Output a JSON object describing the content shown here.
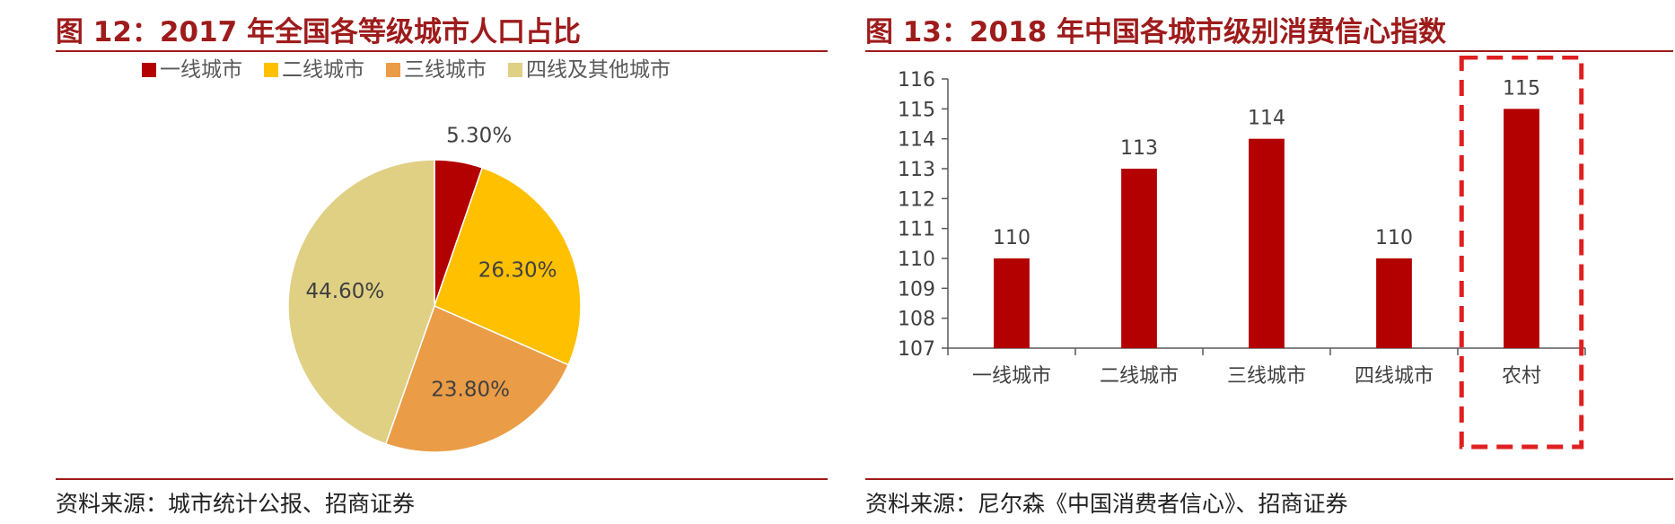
{
  "figures": {
    "left": {
      "title": "图 12：2017 年全国各等级城市人口占比",
      "source": "资料来源：城市统计公报、招商证券"
    },
    "right": {
      "title": "图 13：2018 年中国各城市级别消费信心指数",
      "source": "资料来源：尼尔森《中国消费者信心》、招商证券"
    }
  },
  "chart_data": [
    {
      "type": "pie",
      "categories": [
        "一线城市",
        "二线城市",
        "三线城市",
        "四线及其他城市"
      ],
      "values": [
        5.3,
        26.3,
        23.8,
        44.6
      ],
      "data_labels": [
        "5.30%",
        "26.30%",
        "23.80%",
        "44.60%"
      ],
      "colors": [
        "#b30000",
        "#ffc000",
        "#eb9c46",
        "#dfd084"
      ],
      "legend": "top",
      "start_angle": "12 o'clock, clockwise"
    },
    {
      "type": "bar",
      "categories": [
        "一线城市",
        "二线城市",
        "三线城市",
        "四线城市",
        "农村"
      ],
      "values": [
        110,
        113,
        114,
        110,
        115
      ],
      "data_labels": [
        "110",
        "113",
        "114",
        "110",
        "115"
      ],
      "ylim": [
        107,
        116
      ],
      "yticks": [
        "107",
        "108",
        "109",
        "110",
        "111",
        "112",
        "113",
        "114",
        "115",
        "116"
      ],
      "bar_color": "#b30000",
      "highlight_category": "农村",
      "highlight_color": "#e02020",
      "grid": false,
      "legend": "none"
    }
  ]
}
